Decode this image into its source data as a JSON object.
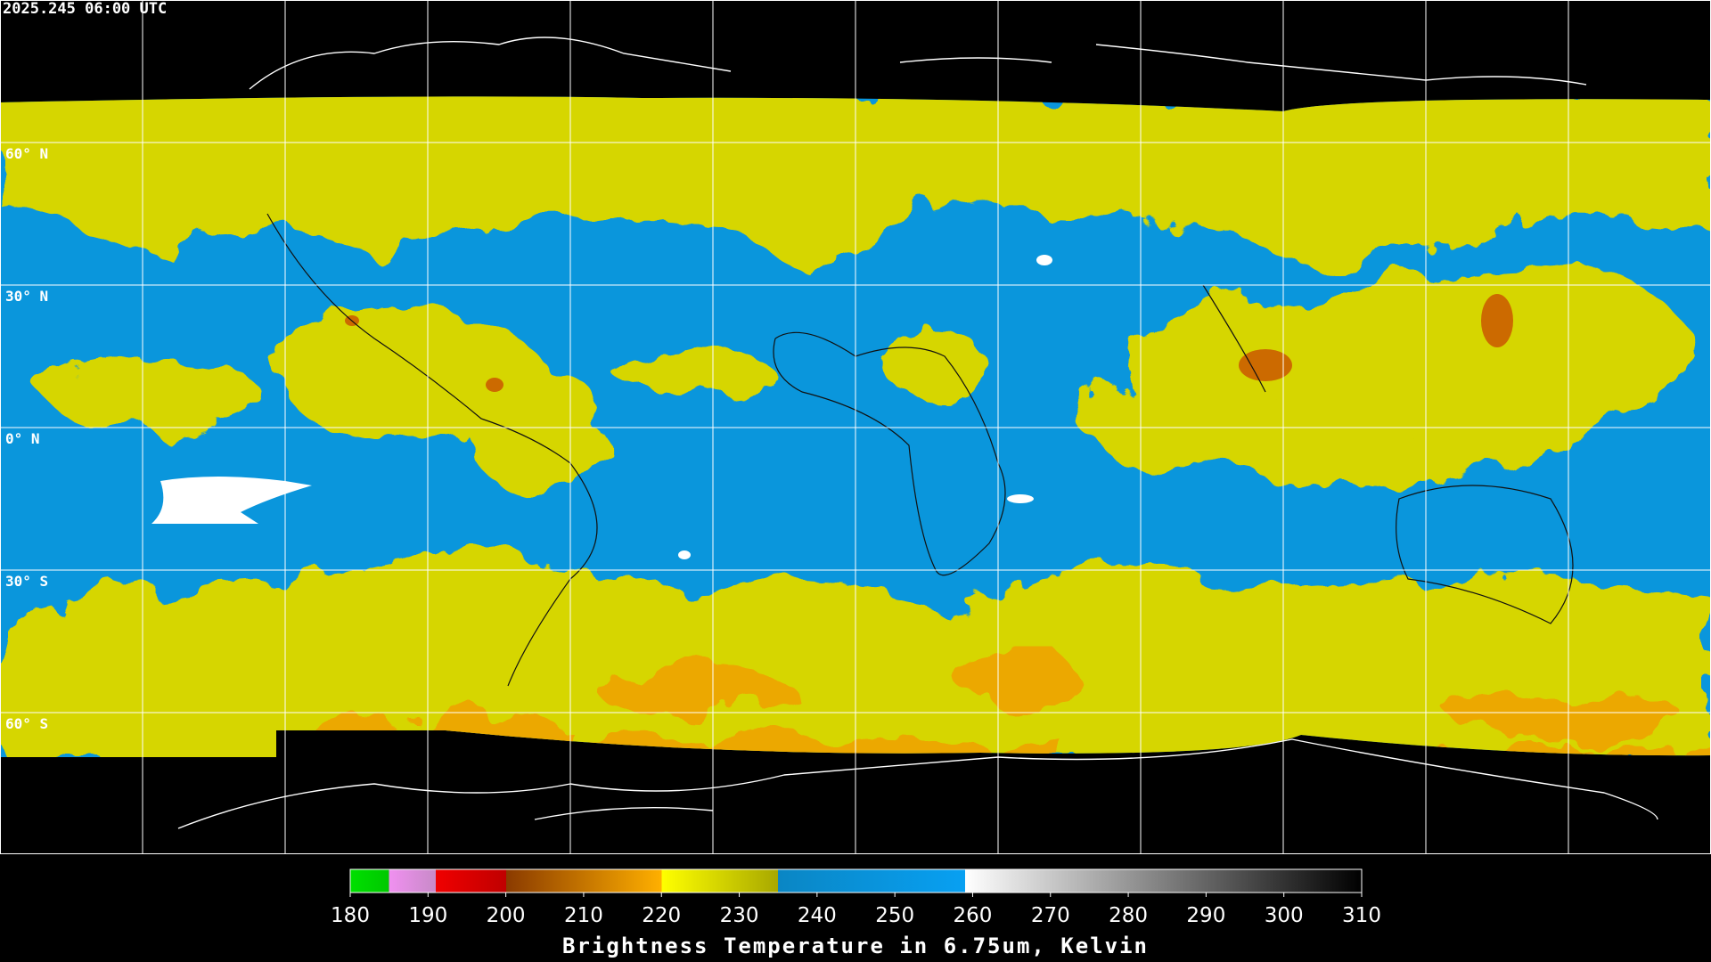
{
  "header": {
    "timestamp": "2025.245 06:00 UTC"
  },
  "map": {
    "lat_labels": [
      "60° N",
      "30° N",
      "0° N",
      "30° S",
      "60° S"
    ]
  },
  "colorbar": {
    "range": [
      180,
      310
    ],
    "ticks": [
      180,
      190,
      200,
      210,
      220,
      230,
      240,
      250,
      260,
      270,
      280,
      290,
      300,
      310
    ],
    "title": "Brightness Temperature in 6.75um, Kelvin"
  }
}
